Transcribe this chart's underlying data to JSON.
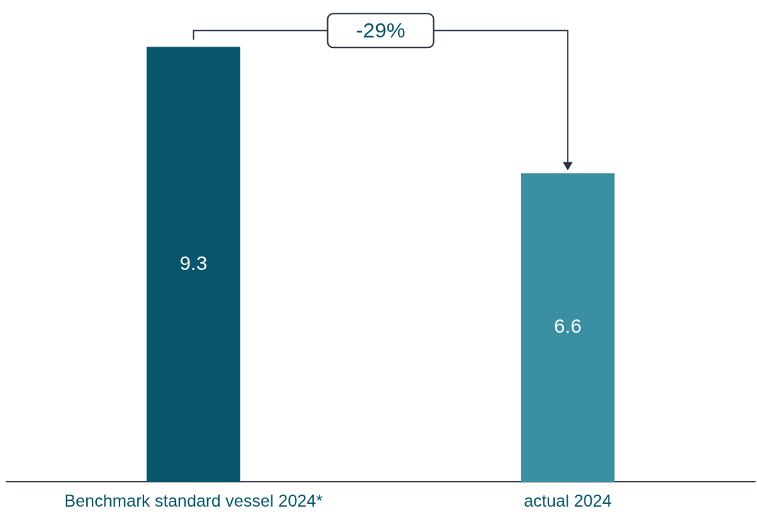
{
  "chart_data": {
    "type": "bar",
    "categories": [
      "Benchmark standard vessel 2024*",
      "actual 2024"
    ],
    "values": [
      9.3,
      6.6
    ],
    "colors": [
      "#08566b",
      "#3a8fa3"
    ],
    "ylim": [
      0,
      10
    ],
    "tick_labels": "x",
    "grid": false,
    "legend": false,
    "data_labels": true,
    "annotations": [
      "-29%"
    ]
  }
}
